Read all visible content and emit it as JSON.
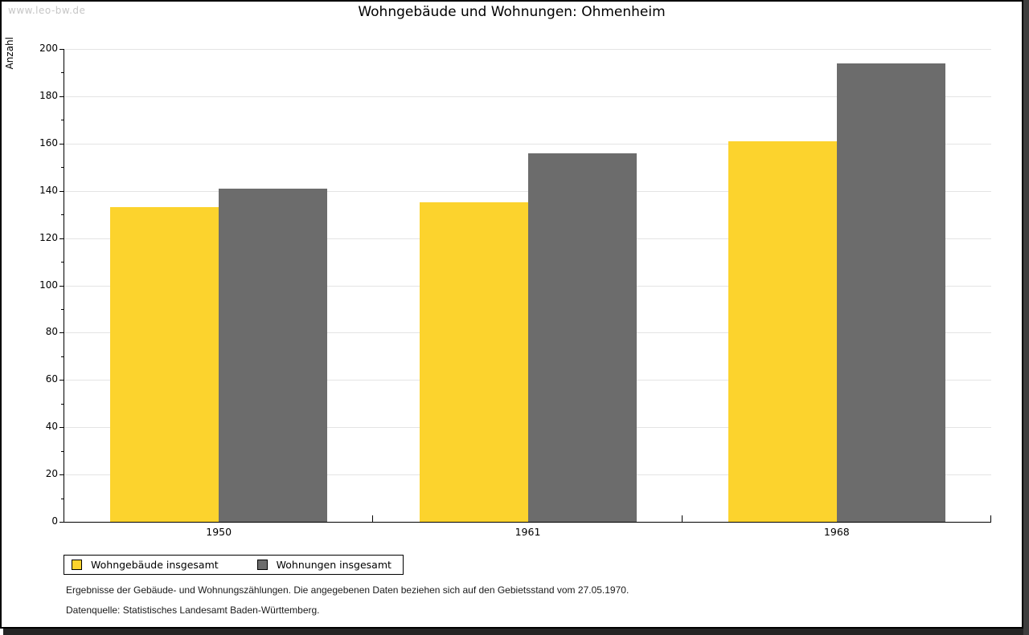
{
  "watermark": "www.leo-bw.de",
  "chart_data": {
    "type": "bar",
    "title": "Wohngebäude und Wohnungen: Ohmenheim",
    "ylabel": "Anzahl",
    "xlabel": "",
    "categories": [
      "1950",
      "1961",
      "1968"
    ],
    "series": [
      {
        "name": "Wohngebäude insgesamt",
        "color": "#fcd32d",
        "values": [
          133,
          135,
          161
        ]
      },
      {
        "name": "Wohnungen insgesamt",
        "color": "#6c6c6c",
        "values": [
          141,
          156,
          194
        ]
      }
    ],
    "ylim": [
      0,
      200
    ],
    "ytick_step": 20,
    "minor_tick_step": 10,
    "grid": "horizontal-major",
    "legend_position": "bottom-left"
  },
  "footnotes": [
    "Ergebnisse der Gebäude- und Wohnungszählungen. Die angegebenen Daten beziehen sich auf den Gebietsstand vom 27.05.1970.",
    "Datenquelle: Statistisches Landesamt Baden-Württemberg."
  ],
  "colors": {
    "axis": "#000000",
    "gridline": "#e4e4e4",
    "watermark_text": "#c6c6c6",
    "frame_border": "#000000",
    "frame_shadow": "#3e3e3e",
    "background": "#ffffff"
  }
}
